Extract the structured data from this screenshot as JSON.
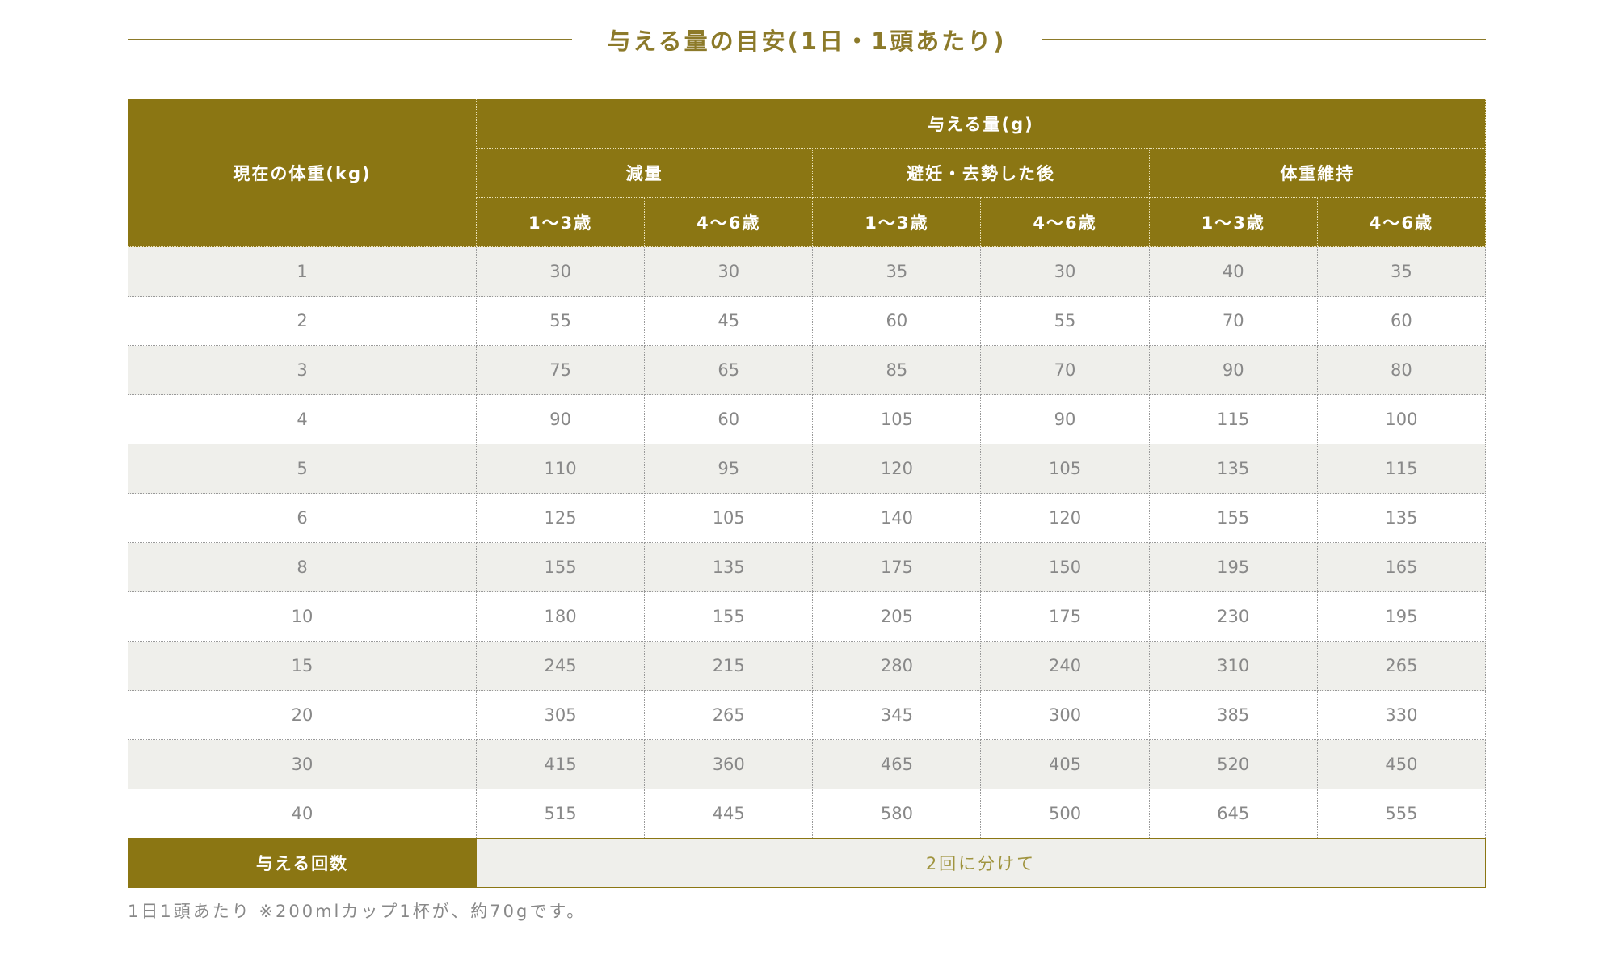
{
  "title": "与える量の目安(1日・1頭あたり)",
  "table": {
    "weight_label": "現在の体重(kg)",
    "amount_label": "与える量(g)",
    "groups": [
      {
        "label": "減量",
        "ages": [
          "1～3歳",
          "4～6歳"
        ]
      },
      {
        "label": "避妊・去勢した後",
        "ages": [
          "1～3歳",
          "4～6歳"
        ]
      },
      {
        "label": "体重維持",
        "ages": [
          "1～3歳",
          "4～6歳"
        ]
      }
    ],
    "rows": [
      [
        1,
        30,
        30,
        35,
        30,
        40,
        35
      ],
      [
        2,
        55,
        45,
        60,
        55,
        70,
        60
      ],
      [
        3,
        75,
        65,
        85,
        70,
        90,
        80
      ],
      [
        4,
        90,
        60,
        105,
        90,
        115,
        100
      ],
      [
        5,
        110,
        95,
        120,
        105,
        135,
        115
      ],
      [
        6,
        125,
        105,
        140,
        120,
        155,
        135
      ],
      [
        8,
        155,
        135,
        175,
        150,
        195,
        165
      ],
      [
        10,
        180,
        155,
        205,
        175,
        230,
        195
      ],
      [
        15,
        245,
        215,
        280,
        240,
        310,
        265
      ],
      [
        20,
        305,
        265,
        345,
        300,
        385,
        330
      ],
      [
        30,
        415,
        360,
        465,
        405,
        520,
        450
      ],
      [
        40,
        515,
        445,
        580,
        500,
        645,
        555
      ]
    ],
    "footer": {
      "label": "与える回数",
      "value": "2回に分けて"
    }
  },
  "note": "1日1頭あたり ※200mlカップ1杯が、約70gです。"
}
